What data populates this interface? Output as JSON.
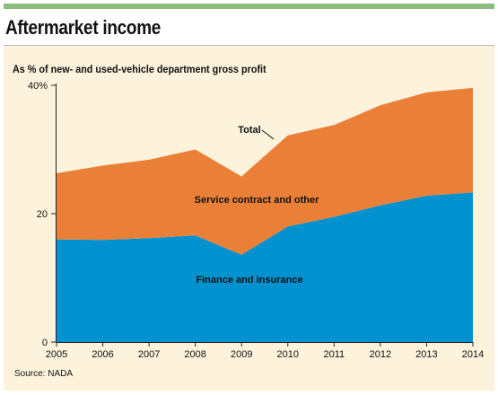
{
  "header": {
    "title": "Aftermarket income"
  },
  "chart_data": {
    "type": "area",
    "title": "Aftermarket income",
    "subtitle": "As % of new- and used-vehicle department gross profit",
    "source": "Source: NADA",
    "x": [
      2005,
      2006,
      2007,
      2008,
      2009,
      2010,
      2011,
      2012,
      2013,
      2014
    ],
    "x_tick_labels": [
      "2005",
      "2006",
      "2007",
      "2008",
      "2009",
      "2010",
      "2011",
      "2012",
      "2013",
      "2014"
    ],
    "ylim": [
      0,
      40
    ],
    "y_ticks": [
      0,
      20,
      40
    ],
    "y_tick_labels": [
      "0",
      "20",
      "40%"
    ],
    "stacked": true,
    "series": [
      {
        "name": "Finance and insurance",
        "color": "#0292d0",
        "values": [
          16.0,
          15.9,
          16.2,
          16.6,
          13.6,
          18.0,
          19.5,
          21.3,
          22.8,
          23.3
        ]
      },
      {
        "name": "Service contract and other",
        "color": "#ea8038",
        "values": [
          10.3,
          11.6,
          12.2,
          13.4,
          12.2,
          14.2,
          14.3,
          15.6,
          16.1,
          16.3
        ]
      }
    ],
    "total_label": "Total",
    "grid": false
  }
}
